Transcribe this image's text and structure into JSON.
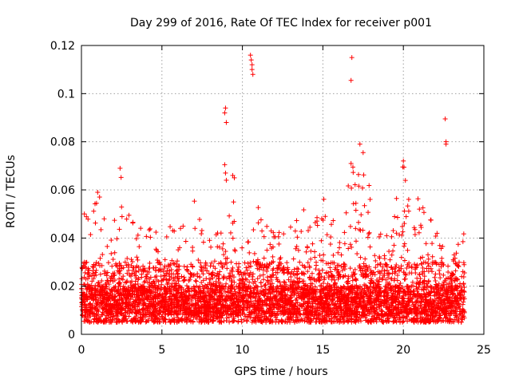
{
  "chart_data": {
    "type": "scatter",
    "title": "Day 299 of 2016, Rate Of TEC Index for receiver p001",
    "xlabel": "GPS time / hours",
    "ylabel": "ROTI / TECUs",
    "xlim": [
      0,
      25
    ],
    "ylim": [
      0,
      0.12
    ],
    "xticks": [
      "0",
      "5",
      "10",
      "15",
      "20",
      "25"
    ],
    "yticks": [
      "0",
      "0.02",
      "0.04",
      "0.06",
      "0.08",
      "0.1",
      "0.12"
    ],
    "xtick_values": [
      0,
      5,
      10,
      15,
      20,
      25
    ],
    "ytick_values": [
      0,
      0.02,
      0.04,
      0.06,
      0.08,
      0.1,
      0.12
    ],
    "grid": true,
    "marker": "+",
    "color": "#ff0000",
    "series": [
      {
        "name": "ROTI",
        "x_range_hours": [
          0,
          23.8
        ],
        "typical_band": [
          0.005,
          0.03
        ],
        "envelope": [
          [
            0.0,
            0.045
          ],
          [
            0.3,
            0.055
          ],
          [
            0.6,
            0.045
          ],
          [
            1.0,
            0.062
          ],
          [
            1.5,
            0.047
          ],
          [
            2.0,
            0.05
          ],
          [
            2.4,
            0.069
          ],
          [
            2.8,
            0.055
          ],
          [
            3.5,
            0.045
          ],
          [
            3.8,
            0.053
          ],
          [
            4.5,
            0.043
          ],
          [
            5.0,
            0.047
          ],
          [
            5.5,
            0.045
          ],
          [
            6.2,
            0.044
          ],
          [
            7.1,
            0.063
          ],
          [
            7.6,
            0.044
          ],
          [
            8.2,
            0.044
          ],
          [
            8.7,
            0.044
          ],
          [
            9.3,
            0.055
          ],
          [
            9.8,
            0.034
          ],
          [
            10.4,
            0.05
          ],
          [
            11.0,
            0.055
          ],
          [
            11.5,
            0.045
          ],
          [
            12.3,
            0.055
          ],
          [
            13.0,
            0.045
          ],
          [
            13.8,
            0.053
          ],
          [
            14.5,
            0.048
          ],
          [
            15.1,
            0.059
          ],
          [
            15.6,
            0.05
          ],
          [
            16.2,
            0.053
          ],
          [
            16.7,
            0.07
          ],
          [
            17.2,
            0.079
          ],
          [
            17.8,
            0.065
          ],
          [
            18.3,
            0.045
          ],
          [
            19.0,
            0.045
          ],
          [
            19.5,
            0.055
          ],
          [
            20.0,
            0.071
          ],
          [
            20.6,
            0.058
          ],
          [
            21.3,
            0.055
          ],
          [
            22.0,
            0.05
          ],
          [
            22.6,
            0.036
          ],
          [
            23.1,
            0.034
          ],
          [
            23.6,
            0.045
          ]
        ],
        "outliers": [
          {
            "x": 8.9,
            "y": 0.092
          },
          {
            "x": 8.95,
            "y": 0.094
          },
          {
            "x": 9.0,
            "y": 0.088
          },
          {
            "x": 8.9,
            "y": 0.0705
          },
          {
            "x": 8.95,
            "y": 0.067
          },
          {
            "x": 9.0,
            "y": 0.064
          },
          {
            "x": 9.4,
            "y": 0.066
          },
          {
            "x": 9.5,
            "y": 0.065
          },
          {
            "x": 9.45,
            "y": 0.055
          },
          {
            "x": 10.5,
            "y": 0.116
          },
          {
            "x": 10.55,
            "y": 0.114
          },
          {
            "x": 10.6,
            "y": 0.112
          },
          {
            "x": 10.6,
            "y": 0.11
          },
          {
            "x": 10.65,
            "y": 0.108
          },
          {
            "x": 16.8,
            "y": 0.115
          },
          {
            "x": 16.75,
            "y": 0.1055
          },
          {
            "x": 22.6,
            "y": 0.0895
          },
          {
            "x": 22.65,
            "y": 0.08
          },
          {
            "x": 22.65,
            "y": 0.079
          },
          {
            "x": 20.0,
            "y": 0.072
          },
          {
            "x": 17.3,
            "y": 0.079
          },
          {
            "x": 17.5,
            "y": 0.0755
          },
          {
            "x": 2.4,
            "y": 0.069
          },
          {
            "x": 16.75,
            "y": 0.071
          }
        ]
      }
    ]
  }
}
